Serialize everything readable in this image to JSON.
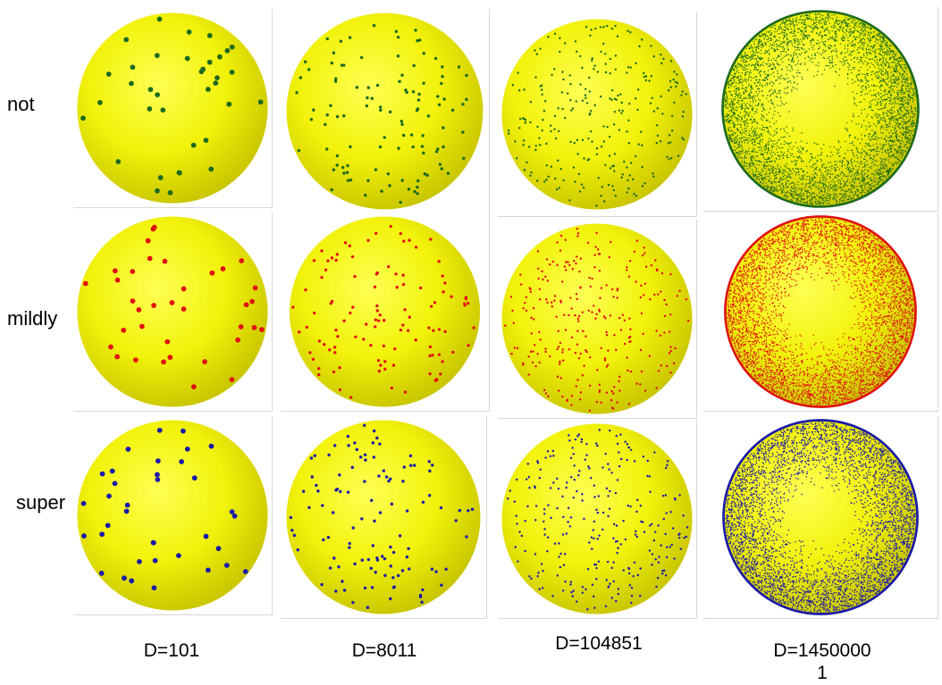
{
  "rows": [
    {
      "label": "not",
      "dot_color": "#1e6b1e"
    },
    {
      "label": "mildly",
      "dot_color": "#e01010"
    },
    {
      "label": "super",
      "dot_color": "#1a1aa8"
    }
  ],
  "columns": [
    {
      "label_line1": "D=101",
      "label_line2": ""
    },
    {
      "label_line1": "D=8011",
      "label_line2": ""
    },
    {
      "label_line1": "D=104851",
      "label_line2": ""
    },
    {
      "label_line1": "D=1450000",
      "label_line2": "1"
    }
  ],
  "sphere_color": "#f2f20a"
}
